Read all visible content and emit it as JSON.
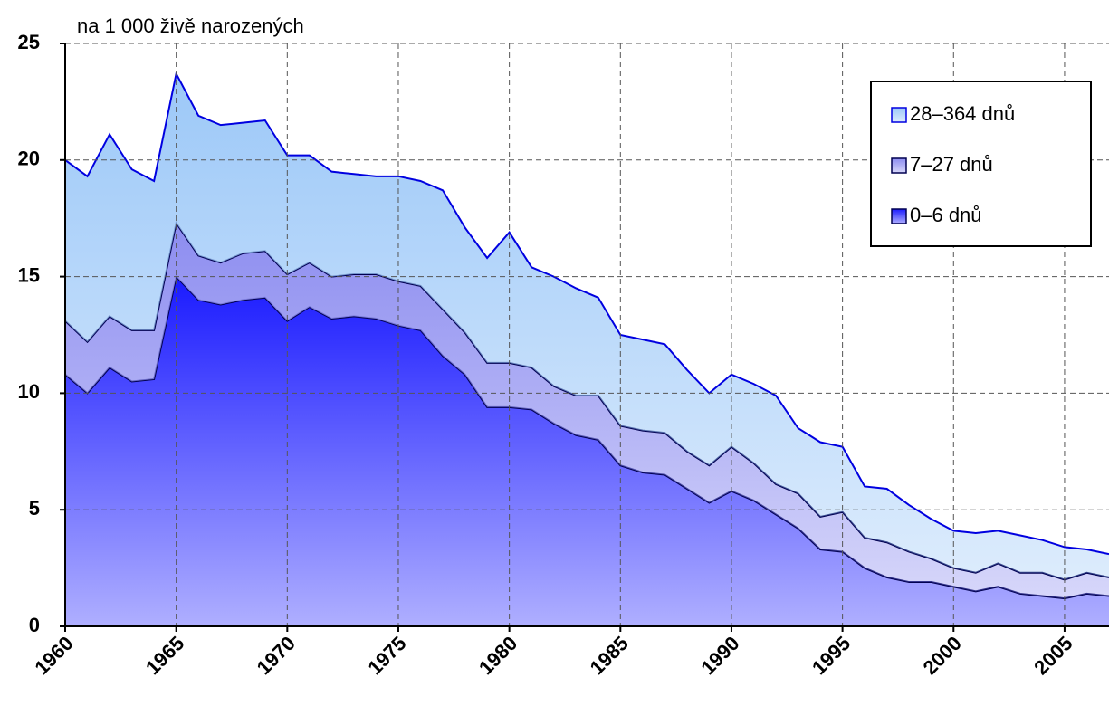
{
  "chart_data": {
    "type": "stacked_area",
    "y_label": "na 1 000 živě narozených",
    "x": [
      1960,
      1961,
      1962,
      1963,
      1964,
      1965,
      1966,
      1967,
      1968,
      1969,
      1970,
      1971,
      1972,
      1973,
      1974,
      1975,
      1976,
      1977,
      1978,
      1979,
      1980,
      1981,
      1982,
      1983,
      1984,
      1985,
      1986,
      1987,
      1988,
      1989,
      1990,
      1991,
      1992,
      1993,
      1994,
      1995,
      1996,
      1997,
      1998,
      1999,
      2000,
      2001,
      2002,
      2003,
      2004,
      2005,
      2006,
      2007
    ],
    "series": [
      {
        "name": "0–6 dnů",
        "color": "#1a1aff",
        "line_color": "#000050",
        "values": [
          10.8,
          10.0,
          11.1,
          10.5,
          10.6,
          15.0,
          14.0,
          13.8,
          14.0,
          14.1,
          13.1,
          13.7,
          13.2,
          13.3,
          13.2,
          12.9,
          12.7,
          11.6,
          10.8,
          9.4,
          9.4,
          9.3,
          8.7,
          8.2,
          8.0,
          6.9,
          6.6,
          6.5,
          5.9,
          5.3,
          5.8,
          5.4,
          4.8,
          4.2,
          3.3,
          3.2,
          2.5,
          2.1,
          1.9,
          1.9,
          1.7,
          1.5,
          1.7,
          1.4,
          1.3,
          1.2,
          1.4,
          1.3
        ]
      },
      {
        "name": "7–27 dnů",
        "color": "#8c8cf0",
        "line_color": "#000050",
        "values": [
          2.3,
          2.2,
          2.2,
          2.2,
          2.1,
          2.3,
          1.9,
          1.8,
          2.0,
          2.0,
          2.0,
          1.9,
          1.8,
          1.8,
          1.9,
          1.9,
          1.9,
          2.0,
          1.8,
          1.9,
          1.9,
          1.8,
          1.6,
          1.7,
          1.9,
          1.7,
          1.8,
          1.8,
          1.6,
          1.6,
          1.9,
          1.6,
          1.3,
          1.5,
          1.4,
          1.7,
          1.3,
          1.5,
          1.3,
          1.0,
          0.8,
          0.8,
          1.0,
          0.9,
          1.0,
          0.8,
          0.9,
          0.8
        ]
      },
      {
        "name": "28–364 dnů",
        "color": "#9cc8f8",
        "line_color": "#0000e0",
        "values": [
          6.9,
          7.1,
          7.8,
          6.9,
          6.4,
          6.4,
          6.0,
          5.9,
          5.6,
          5.6,
          5.1,
          4.6,
          4.5,
          4.3,
          4.2,
          4.5,
          4.5,
          5.1,
          4.5,
          4.5,
          5.6,
          4.3,
          4.7,
          4.6,
          4.2,
          3.9,
          3.9,
          3.8,
          3.5,
          3.1,
          3.1,
          3.4,
          3.8,
          2.8,
          3.2,
          2.8,
          2.2,
          2.3,
          2.0,
          1.7,
          1.6,
          1.7,
          1.4,
          1.6,
          1.4,
          1.4,
          1.0,
          1.0
        ]
      }
    ],
    "xlim": [
      1960,
      2007
    ],
    "xticks": [
      1960,
      1965,
      1970,
      1975,
      1980,
      1985,
      1990,
      1995,
      2000,
      2005
    ],
    "ylim": [
      0,
      25
    ],
    "yticks": [
      0,
      5,
      10,
      15,
      20,
      25
    ],
    "grid": true,
    "legend": "top-right"
  }
}
